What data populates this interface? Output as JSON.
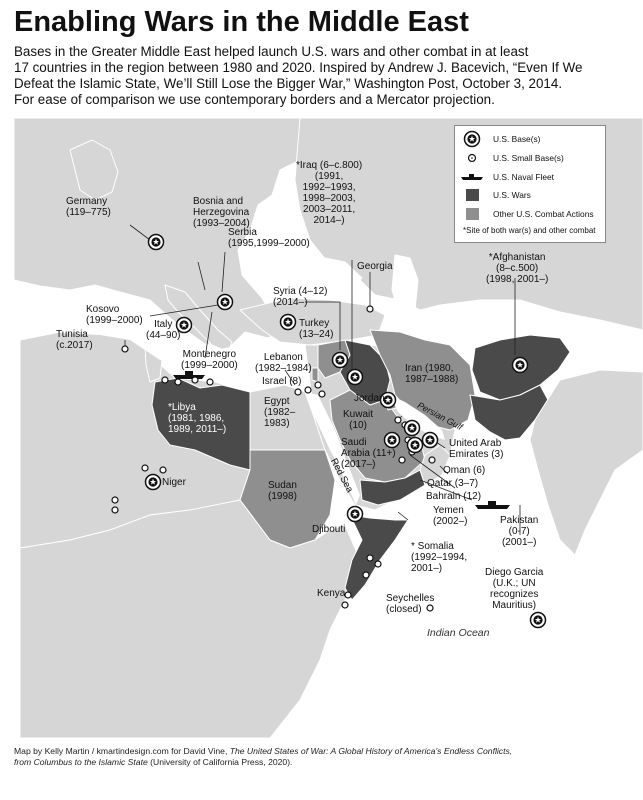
{
  "title": "Enabling Wars in the Middle East",
  "subtitle_lines": [
    "Bases in the Greater Middle East helped launch U.S. wars and other combat in at least",
    "17 countries in the region between 1980 and 2020. Inspired by Andrew J. Bacevich, “Even If We",
    "Defeat the Islamic State, We’ll Still Lose the Bigger War,” Washington Post, October 3, 2014.",
    "For ease of comparison we use contemporary borders and a Mercator projection."
  ],
  "legend": {
    "items": [
      "U.S. Base(s)",
      "U.S. Small Base(s)",
      "U.S. Naval Fleet",
      "U.S. Wars",
      "Other U.S. Combat Actions"
    ],
    "note": "*Site of both war(s) and other combat"
  },
  "colors": {
    "ocean": "#ffffff",
    "land": "#d6d6d6",
    "war": "#4a4a4a",
    "combat": "#8f8f8f",
    "border": "#ffffff"
  },
  "labels": {
    "germany": "Germany\n(119–775)",
    "bosnia": "Bosnia and\nHerzegovina\n(1993–2004)",
    "serbia": "Serbia\n(1995,1999–2000)",
    "iraq": "*Iraq (6–c.800)\n(1991,\n1992–1993,\n1998–2003,\n2003–2011,\n2014–)",
    "georgia": "Georgia",
    "afghanistan": "*Afghanistan\n(8–c.500)\n(1998, 2001–)",
    "kosovo": "Kosovo\n(1999–2000)",
    "italy": "Italy\n(44–90)",
    "tunisia": "Tunisia\n(c.2017)",
    "syria": "Syria (4–12)\n(2014–)",
    "turkey": "Turkey\n(13–24)",
    "montenegro": "Montenegro\n(1999–2000)",
    "lebanon": "Lebanon\n(1982–1984)",
    "israel": "Israel (8)",
    "iran": "Iran (1980,\n1987–1988)",
    "libya": "*Libya\n(1981, 1986,\n1989, 2011–)",
    "egypt": "Egypt\n(1982–\n1983)",
    "jordan": "Jordan",
    "kuwait": "Kuwait\n(10)",
    "persian_gulf": "Persian Gulf",
    "saudi": "Saudi\nArabia (11+)\n(2017–)",
    "uae": "United Arab\nEmirates (3)",
    "oman": "Oman (6)",
    "qatar": "Qatar (3–7)",
    "bahrain": "Bahrain (12)",
    "red_sea": "Red Sea",
    "niger": "Niger",
    "sudan": "Sudan\n(1998)",
    "yemen": "Yemen\n(2002–)",
    "pakistan": "Pakistan\n(0-7)\n(2001–)",
    "djibouti": "Djibouti",
    "somalia": "* Somalia\n(1992–1994,\n2001–)",
    "diego": "Diego Garcia\n(U.K.; UN\nrecognizes\nMauritius)",
    "kenya": "Kenya",
    "seychelles": "Seychelles\n(closed)",
    "indian_ocean": "Indian Ocean"
  },
  "credit": {
    "line1_plain": "Map by Kelly Martin / kmartindesign.com for David Vine, ",
    "line1_italic": "The United States of War: A Global History of America’s Endless Conflicts,",
    "line2_italic": "from Columbus to the Islamic State",
    "line2_plain": " (University of California Press, 2020)."
  }
}
